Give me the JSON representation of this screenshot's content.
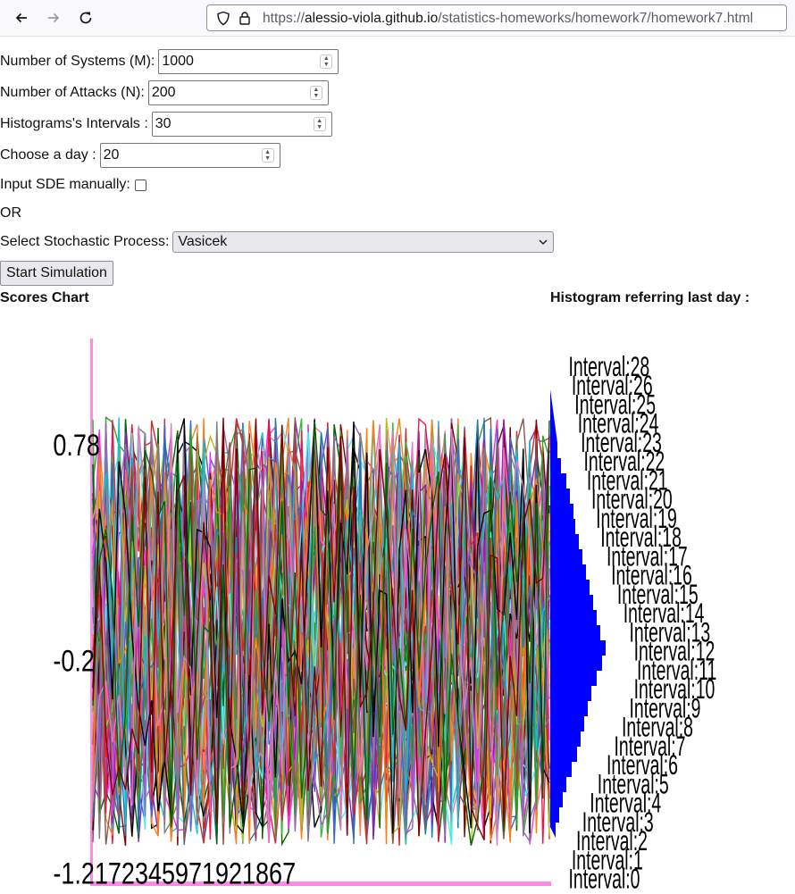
{
  "browser": {
    "url_prefix": "https://",
    "url_host": "alessio-viola.github.io",
    "url_path": "/statistics-homeworks/homework7/homework7.html"
  },
  "form": {
    "systems_label": "Number of Systems (M):",
    "systems_value": "1000",
    "attacks_label": "Number of Attacks (N):",
    "attacks_value": "200",
    "intervals_label": "Histograms's Intervals :",
    "intervals_value": "30",
    "day_label": "Choose a day :",
    "day_value": "20",
    "manual_label": "Input SDE manually:",
    "or_label": "OR",
    "process_label": "Select Stochastic Process:",
    "process_value": "Vasicek",
    "start_button": "Start Simulation"
  },
  "scores_chart": {
    "title": "Scores Chart",
    "y_labels": [
      "0.78",
      "-0.2",
      "-1.2172345971921867"
    ]
  },
  "histogram": {
    "title": "Histogram referring last day :",
    "labels": [
      "Interval:28",
      "Interval:26",
      "Interval:25",
      "Interval:24",
      "Interval:23",
      "Interval:22",
      "Interval:21",
      "Interval:20",
      "Interval:19",
      "Interval:18",
      "Interval:17",
      "Interval:16",
      "Interval:15",
      "Interval:14",
      "Interval:13",
      "Interval:12",
      "Interval:11",
      "Interval:10",
      "Interval:9",
      "Interval:8",
      "Interval:7",
      "Interval:6",
      "Interval:5",
      "Interval:4",
      "Interval:3",
      "Interval:2",
      "Interval:1",
      "Interval:0"
    ]
  },
  "colors": {
    "histogram_bar": "#0000ff",
    "chart_axis": "#ff88e8"
  },
  "icons": [
    "back-arrow-icon",
    "forward-arrow-icon",
    "reload-icon",
    "shield-icon",
    "lock-icon",
    "spinner-icon",
    "dropdown-chevron-icon"
  ]
}
